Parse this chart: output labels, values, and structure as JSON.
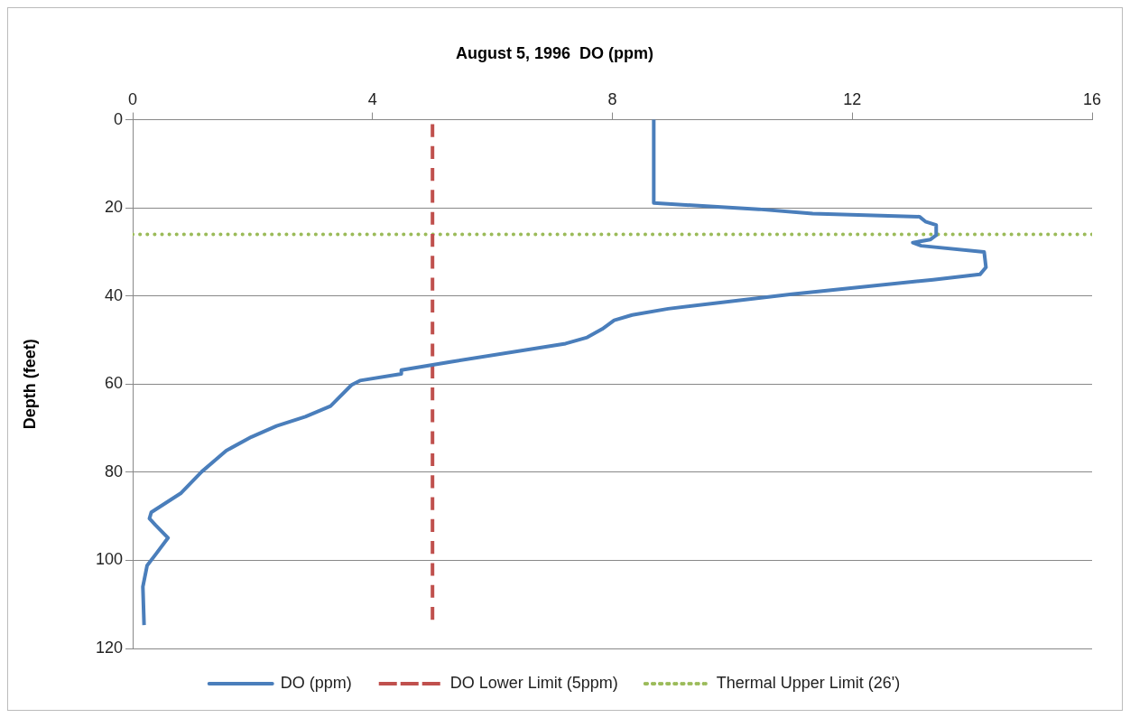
{
  "chart_data": {
    "type": "line",
    "title": "August 5, 1996  DO (ppm)",
    "ylabel": "Depth (feet)",
    "xlim": [
      0,
      16
    ],
    "xticks": [
      0,
      4,
      8,
      12,
      16
    ],
    "ylim": [
      120,
      0
    ],
    "yticks": [
      0,
      20,
      40,
      60,
      80,
      100,
      120
    ],
    "grid": "y",
    "legend": "bottom",
    "marker": "none",
    "series": [
      {
        "name": "DO (ppm)",
        "color": "#4a7ebb",
        "line_style": "solid",
        "x": [
          8.69,
          8.69,
          10.44,
          11.34,
          13.12,
          13.22,
          13.4,
          13.4,
          13.3,
          13.01,
          13.15,
          14.2,
          14.23,
          14.13,
          13.35,
          10.99,
          8.93,
          8.33,
          8.03,
          7.83,
          7.58,
          7.22,
          5.32,
          4.48,
          4.48,
          3.79,
          3.65,
          3.3,
          2.88,
          2.4,
          1.98,
          1.56,
          1.15,
          0.8,
          0.31,
          0.28,
          0.38,
          0.59,
          0.38,
          0.24,
          0.17,
          0.19
        ],
        "values": [
          0,
          18.9,
          20.3,
          21.3,
          22,
          23.1,
          23.9,
          26.2,
          27.2,
          27.9,
          28.6,
          30,
          33.5,
          35.1,
          36.3,
          39.6,
          42.9,
          44.3,
          45.5,
          47.5,
          49.4,
          50.8,
          54.9,
          56.8,
          57.7,
          59.2,
          60.2,
          65,
          67.4,
          69.5,
          72,
          75.1,
          79.9,
          84.8,
          89.1,
          90.5,
          92,
          94.9,
          98.7,
          101.2,
          106,
          114.7
        ]
      },
      {
        "name": "DO Lower Limit (5ppm)",
        "color": "#c0504d",
        "line_style": "dashed",
        "x": [
          5,
          5
        ],
        "values": [
          1,
          113.5
        ]
      },
      {
        "name": "Thermal Upper Limit (26')",
        "color": "#9bbb59",
        "line_style": "dotted",
        "x": [
          0,
          16
        ],
        "values": [
          26,
          26
        ]
      }
    ]
  }
}
